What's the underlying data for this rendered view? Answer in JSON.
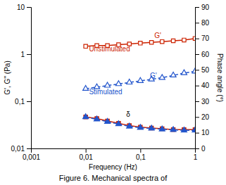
{
  "chart_data": {
    "type": "line",
    "title": "Figure 6. Mechanical spectra of",
    "xlabel": "Frequency (Hz)",
    "ylabel": "G', G'' (Pa)",
    "y2label": "Phase angle (°)",
    "log": true,
    "xlim": [
      0.001,
      1
    ],
    "xticks": [
      {
        "value": 0.001,
        "label": "0,001"
      },
      {
        "value": 0.01,
        "label": "0,01"
      },
      {
        "value": 0.1,
        "label": "0,1"
      },
      1
    ],
    "ylim": [
      0.01,
      10
    ],
    "yticks": [
      {
        "value": 0.01,
        "label": "0,01"
      },
      {
        "value": 0.1,
        "label": "0,1"
      },
      1,
      10
    ],
    "y2lim": [
      0,
      90
    ],
    "y2ticks": [
      0,
      10,
      20,
      30,
      40,
      50,
      60,
      70,
      80,
      90
    ],
    "x": [
      0.01,
      0.016,
      0.025,
      0.04,
      0.063,
      0.1,
      0.16,
      0.25,
      0.4,
      0.63,
      1.0
    ],
    "series": [
      {
        "color": "#cc2200",
        "axis": "y2",
        "marker": "square-open",
        "line_style": "solid",
        "values": [
          65,
          65.5,
          65.5,
          66,
          66.5,
          67,
          67.5,
          68,
          68.5,
          69,
          70
        ]
      },
      {
        "color": "#2255cc",
        "axis": "y2",
        "marker": "triangle-open",
        "line_style": "dashed",
        "values": [
          38,
          39,
          40,
          41,
          42,
          43,
          44,
          45,
          46.5,
          48,
          49
        ]
      },
      {
        "color": "#cc2200",
        "axis": "y2",
        "marker": "square",
        "line_style": "solid",
        "values": [
          20,
          19,
          17.5,
          16,
          14.5,
          13.5,
          13,
          12.5,
          12,
          12,
          12
        ]
      },
      {
        "color": "#2255cc",
        "axis": "y2",
        "marker": "triangle",
        "line_style": "dashed",
        "values": [
          20,
          18.5,
          17,
          15.5,
          14,
          13.2,
          12.7,
          12.2,
          11.8,
          11.5,
          11.5
        ]
      }
    ],
    "annotations": [
      {
        "text": "Unstimulated",
        "x": 0.0115,
        "y": 63,
        "axis": "y2",
        "color": "#cc2200"
      },
      {
        "text": "Stimulated",
        "x": 0.0115,
        "y": 35.5,
        "axis": "y2",
        "color": "#2255cc"
      },
      {
        "text": "G'",
        "x": 0.18,
        "y": 71.5,
        "axis": "y2",
        "color": "#cc2200"
      },
      {
        "text": "G'",
        "x": 0.15,
        "y": 46,
        "axis": "y2",
        "color": "#2255cc"
      },
      {
        "text": "δ",
        "x": 0.055,
        "y": 21.5,
        "axis": "y2",
        "color": "#000000"
      }
    ]
  }
}
